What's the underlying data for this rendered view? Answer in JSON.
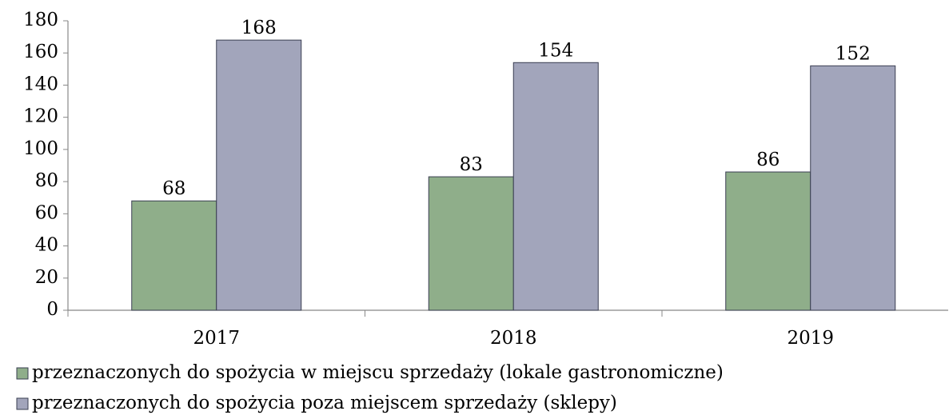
{
  "chart_data": {
    "type": "bar",
    "categories": [
      "2017",
      "2018",
      "2019"
    ],
    "series": [
      {
        "name": "przeznaczonych do spożycia w miejscu sprzedaży (lokale gastronomiczne)",
        "color": "#8fae8a",
        "values": [
          68,
          83,
          86
        ]
      },
      {
        "name": "przeznaczonych do spożycia poza miejscem sprzedaży (sklepy)",
        "color": "#a2a5bb",
        "values": [
          168,
          154,
          152
        ]
      }
    ],
    "ylim": [
      0,
      180
    ],
    "yticks": [
      0,
      20,
      40,
      60,
      80,
      100,
      120,
      140,
      160,
      180
    ],
    "grid": false,
    "legend": "bottom"
  }
}
